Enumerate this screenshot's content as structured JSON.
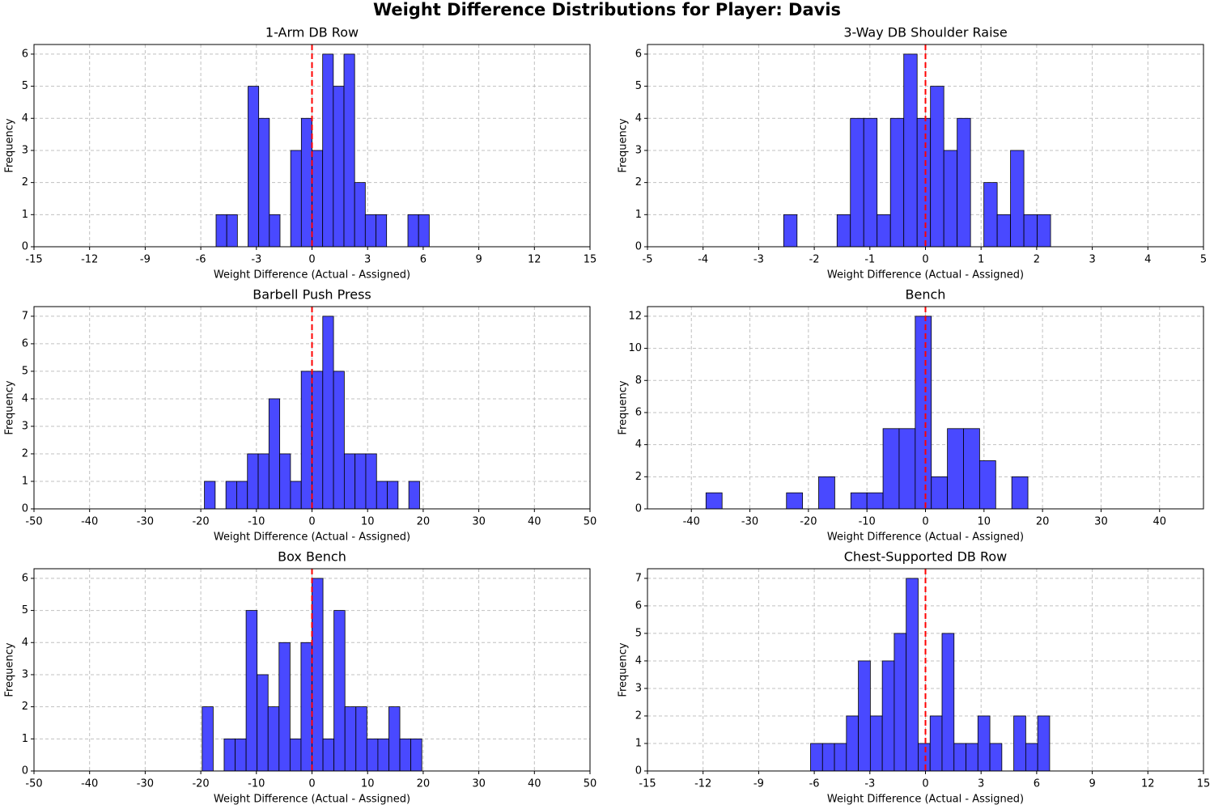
{
  "title": "Weight Difference Distributions for Player: Davis",
  "chart_data": [
    {
      "type": "histogram",
      "title": "1-Arm DB Row",
      "xlabel": "Weight Difference (Actual - Assigned)",
      "ylabel": "Frequency",
      "bins": [
        -5.175,
        -4.6,
        -4.025,
        -3.45,
        -2.875,
        -2.3,
        -1.725,
        -1.15,
        -0.575,
        0,
        0.575,
        1.15,
        1.725,
        2.3,
        2.875,
        3.45,
        4.025,
        4.6,
        5.175,
        5.75,
        6.325
      ],
      "values": [
        1,
        1,
        0,
        5,
        4,
        1,
        0,
        3,
        4,
        3,
        6,
        5,
        6,
        2,
        1,
        1,
        0,
        0,
        1,
        1
      ],
      "color": "#4949ff",
      "edgecolor": "#000000",
      "xlim": [
        -15,
        15
      ],
      "ylim": [
        0,
        6.3
      ],
      "xticks": [
        -15,
        -12,
        -9,
        -6,
        -3,
        0,
        3,
        6,
        9,
        12,
        15
      ],
      "yticks": [
        0,
        1,
        2,
        3,
        4,
        5,
        6
      ],
      "grid": true,
      "vline": 0,
      "vline_color": "#ff0000"
    },
    {
      "type": "histogram",
      "title": "3-Way DB Shoulder Raise",
      "xlabel": "Weight Difference (Actual - Assigned)",
      "ylabel": "Frequency",
      "bins": [
        -2.55,
        -2.31,
        -2.07,
        -1.83,
        -1.59,
        -1.35,
        -1.11,
        -0.87,
        -0.63,
        -0.39,
        -0.15,
        0.09,
        0.33,
        0.57,
        0.81,
        1.05,
        1.29,
        1.53,
        1.77,
        2.01,
        2.25
      ],
      "values": [
        1,
        0,
        0,
        0,
        1,
        4,
        4,
        1,
        4,
        6,
        4,
        5,
        3,
        4,
        0,
        2,
        1,
        3,
        1,
        1
      ],
      "color": "#4949ff",
      "edgecolor": "#000000",
      "xlim": [
        -5,
        5
      ],
      "ylim": [
        0,
        6.3
      ],
      "xticks": [
        -5,
        -4,
        -3,
        -2,
        -1,
        0,
        1,
        2,
        3,
        4,
        5
      ],
      "yticks": [
        0,
        1,
        2,
        3,
        4,
        5,
        6
      ],
      "grid": true,
      "vline": 0,
      "vline_color": "#ff0000"
    },
    {
      "type": "histogram",
      "title": "Barbell Push Press",
      "xlabel": "Weight Difference (Actual - Assigned)",
      "ylabel": "Frequency",
      "bins": [
        -19.35,
        -17.415,
        -15.48,
        -13.545,
        -11.61,
        -9.675,
        -7.74,
        -5.805,
        -3.87,
        -1.935,
        0,
        1.935,
        3.87,
        5.805,
        7.74,
        9.675,
        11.61,
        13.545,
        15.48,
        17.415,
        19.35
      ],
      "values": [
        1,
        0,
        1,
        1,
        2,
        2,
        4,
        2,
        1,
        5,
        5,
        7,
        5,
        2,
        2,
        2,
        1,
        1,
        0,
        1
      ],
      "color": "#4949ff",
      "edgecolor": "#000000",
      "xlim": [
        -50,
        50
      ],
      "ylim": [
        0,
        7.35
      ],
      "xticks": [
        -50,
        -40,
        -30,
        -20,
        -10,
        0,
        10,
        20,
        30,
        40,
        50
      ],
      "yticks": [
        0,
        1,
        2,
        3,
        4,
        5,
        6,
        7
      ],
      "grid": true,
      "vline": 0,
      "vline_color": "#ff0000"
    },
    {
      "type": "histogram",
      "title": "Bench",
      "xlabel": "Weight Difference (Actual - Assigned)",
      "ylabel": "Frequency",
      "bins": [
        -37.5,
        -34.75,
        -32,
        -29.25,
        -26.5,
        -23.75,
        -21,
        -18.25,
        -15.5,
        -12.75,
        -10,
        -7.25,
        -4.5,
        -1.75,
        1,
        3.75,
        6.5,
        9.25,
        12,
        14.75,
        17.5
      ],
      "values": [
        1,
        0,
        0,
        0,
        0,
        1,
        0,
        2,
        0,
        1,
        1,
        5,
        5,
        12,
        2,
        5,
        5,
        3,
        0,
        2
      ],
      "color": "#4949ff",
      "edgecolor": "#000000",
      "xlim": [
        -47.5,
        47.5
      ],
      "ylim": [
        0,
        12.6
      ],
      "xticks": [
        -40,
        -30,
        -20,
        -10,
        0,
        10,
        20,
        30,
        40
      ],
      "yticks": [
        0,
        2,
        4,
        6,
        8,
        10,
        12
      ],
      "grid": true,
      "vline": 0,
      "vline_color": "#ff0000"
    },
    {
      "type": "histogram",
      "title": "Box Bench",
      "xlabel": "Weight Difference (Actual - Assigned)",
      "ylabel": "Frequency",
      "bins": [
        -19.75,
        -17.775,
        -15.8,
        -13.825,
        -11.85,
        -9.875,
        -7.9,
        -5.925,
        -3.95,
        -1.975,
        0,
        1.975,
        3.95,
        5.925,
        7.9,
        9.875,
        11.85,
        13.825,
        15.8,
        17.775,
        19.75
      ],
      "values": [
        2,
        0,
        1,
        1,
        5,
        3,
        2,
        4,
        1,
        4,
        6,
        1,
        5,
        2,
        2,
        1,
        1,
        2,
        1,
        1
      ],
      "color": "#4949ff",
      "edgecolor": "#000000",
      "xlim": [
        -50,
        50
      ],
      "ylim": [
        0,
        6.3
      ],
      "xticks": [
        -50,
        -40,
        -30,
        -20,
        -10,
        0,
        10,
        20,
        30,
        40,
        50
      ],
      "yticks": [
        0,
        1,
        2,
        3,
        4,
        5,
        6
      ],
      "grid": true,
      "vline": 0,
      "vline_color": "#ff0000"
    },
    {
      "type": "histogram",
      "title": "Chest-Supported DB Row",
      "xlabel": "Weight Difference (Actual - Assigned)",
      "ylabel": "Frequency",
      "bins": [
        -6.2,
        -5.555,
        -4.91,
        -4.265,
        -3.62,
        -2.975,
        -2.33,
        -1.685,
        -1.04,
        -0.395,
        0.25,
        0.895,
        1.54,
        2.185,
        2.83,
        3.475,
        4.12,
        4.765,
        5.41,
        6.055,
        6.7
      ],
      "values": [
        1,
        1,
        1,
        2,
        4,
        2,
        4,
        5,
        7,
        1,
        2,
        5,
        1,
        1,
        2,
        1,
        0,
        2,
        1,
        2
      ],
      "color": "#4949ff",
      "edgecolor": "#000000",
      "xlim": [
        -15,
        15
      ],
      "ylim": [
        0,
        7.35
      ],
      "xticks": [
        -15,
        -12,
        -9,
        -6,
        -3,
        0,
        3,
        6,
        9,
        12,
        15
      ],
      "yticks": [
        0,
        1,
        2,
        3,
        4,
        5,
        6,
        7
      ],
      "grid": true,
      "vline": 0,
      "vline_color": "#ff0000"
    }
  ]
}
